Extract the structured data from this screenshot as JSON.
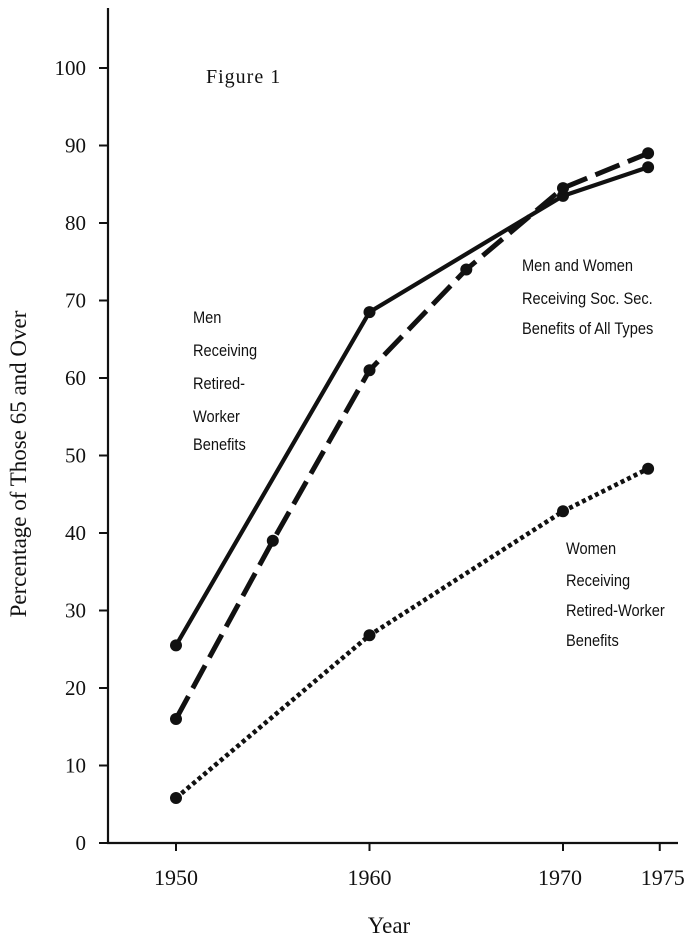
{
  "chart_data": {
    "type": "line",
    "title": "Figure 1",
    "xlabel": "Year",
    "ylabel": "Percentage of Those 65 and Over",
    "x_ticks": [
      1950,
      1960,
      1970,
      1975
    ],
    "y_ticks": [
      0,
      10,
      20,
      30,
      40,
      50,
      60,
      70,
      80,
      90,
      100
    ],
    "xlim": [
      1945,
      1976
    ],
    "ylim": [
      0,
      110
    ],
    "grid": false,
    "legend": "none",
    "series": [
      {
        "name": "Men Receiving Retired-Worker Benefits",
        "style": "solid",
        "color": "#111111",
        "x": [
          1950,
          1960,
          1970,
          1974.4
        ],
        "y": [
          25.5,
          68.5,
          83.5,
          87.2
        ]
      },
      {
        "name": "Men and Women Receiving Soc. Sec. Benefits of All Types",
        "style": "dashed",
        "color": "#111111",
        "x": [
          1950,
          1955,
          1960,
          1965,
          1970,
          1974.4
        ],
        "y": [
          16,
          39,
          61,
          74,
          84.5,
          89
        ]
      },
      {
        "name": "Women Receiving Retired-Worker Benefits",
        "style": "dotted",
        "color": "#111111",
        "x": [
          1950,
          1960,
          1970,
          1974.4
        ],
        "y": [
          5.8,
          26.8,
          42.8,
          48.3
        ]
      }
    ],
    "annotations": [
      {
        "id": "men",
        "lines": [
          "Men",
          "Receiving",
          "Retired-",
          "Worker",
          "Benefits"
        ]
      },
      {
        "id": "all",
        "lines": [
          "Men and Women",
          "Receiving Soc. Sec.",
          "Benefits of All Types"
        ]
      },
      {
        "id": "women",
        "lines": [
          "Women",
          "Receiving",
          "Retired-Worker",
          "Benefits"
        ]
      }
    ]
  }
}
